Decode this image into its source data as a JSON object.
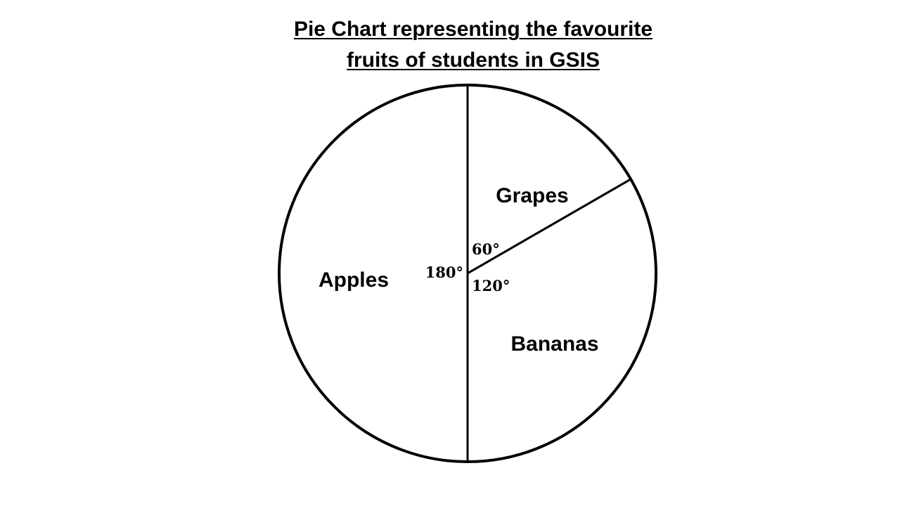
{
  "chart_data": {
    "type": "pie",
    "title_lines": [
      "Pie Chart representing the favourite",
      "fruits of students in GSIS"
    ],
    "unit": "degrees",
    "slices": [
      {
        "label": "Grapes",
        "value": 60,
        "angle_label": "60°"
      },
      {
        "label": "Bananas",
        "value": 120,
        "angle_label": "120°"
      },
      {
        "label": "Apples",
        "value": 180,
        "angle_label": "180°"
      }
    ],
    "colors": {
      "fill": "#ffffff",
      "stroke": "#000000"
    }
  }
}
